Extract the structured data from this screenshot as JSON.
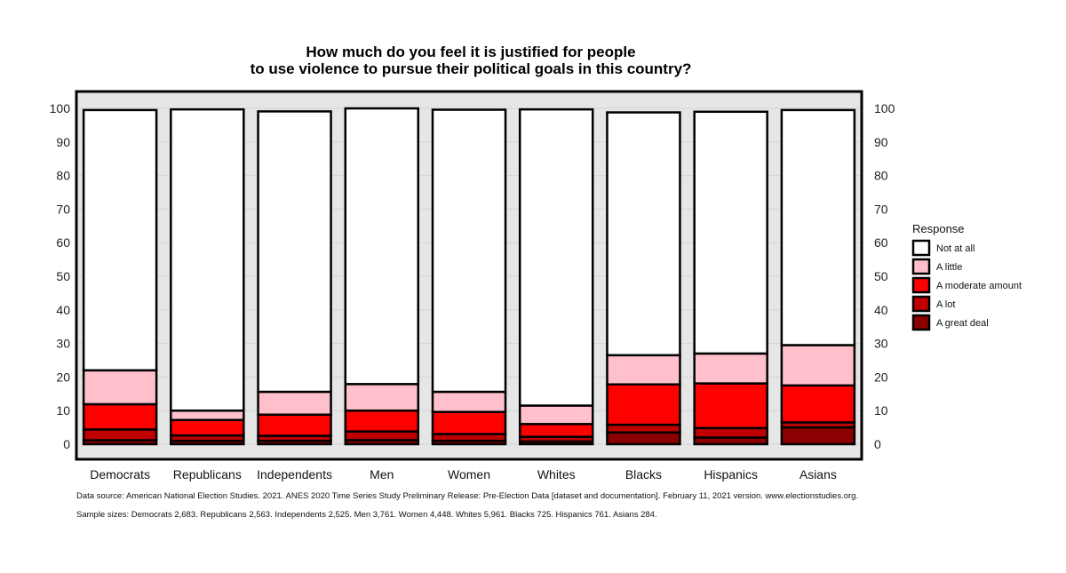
{
  "chart_data": {
    "type": "bar",
    "stacked": true,
    "title_lines": [
      "How much do you feel it is justified for people",
      "to use violence to pursue their political goals in this country?"
    ],
    "categories": [
      "Democrats",
      "Republicans",
      "Independents",
      "Men",
      "Women",
      "Whites",
      "Blacks",
      "Hispanics",
      "Asians"
    ],
    "ylim": [
      0,
      100
    ],
    "yticks": [
      0,
      10,
      20,
      30,
      40,
      50,
      60,
      70,
      80,
      90,
      100
    ],
    "ytick_labels": [
      "0",
      "10",
      "20",
      "30",
      "40",
      "50",
      "60",
      "70",
      "80",
      "90",
      "100"
    ],
    "grid": true,
    "legend_title": "Response",
    "legend_position": "right",
    "series": [
      {
        "name": "A great deal",
        "color": "#8b0000",
        "values": [
          1.2,
          1.0,
          1.0,
          1.2,
          1.0,
          0.8,
          3.5,
          2.0,
          5.0
        ]
      },
      {
        "name": "A lot",
        "color": "#c00000",
        "values": [
          3.2,
          1.6,
          1.5,
          2.6,
          2.0,
          1.4,
          2.3,
          2.8,
          1.5
        ]
      },
      {
        "name": "A moderate amount",
        "color": "#ff0000",
        "values": [
          7.5,
          4.6,
          6.3,
          6.2,
          6.6,
          3.8,
          12.0,
          13.3,
          11.0
        ]
      },
      {
        "name": "A little",
        "color": "#ffc0cb",
        "values": [
          10.1,
          2.8,
          6.8,
          7.9,
          6.0,
          5.5,
          8.7,
          8.9,
          12.0
        ]
      },
      {
        "name": "Not at all",
        "color": "#ffffff",
        "values": [
          77.5,
          89.7,
          83.5,
          82.1,
          84.0,
          88.2,
          72.3,
          72.0,
          70.0
        ]
      }
    ],
    "legend_order": [
      "Not at all",
      "A little",
      "A moderate amount",
      "A lot",
      "A great deal"
    ],
    "notes": [
      "Data source: American National Election Studies. 2021. ANES 2020 Time Series Study Preliminary Release: Pre-Election Data [dataset and documentation]. February 11, 2021 version. www.electionstudies.org.",
      "Sample sizes: Democrats 2,683. Republicans 2,563. Independents 2,525. Men 3,761. Women 4,448. Whites 5,961. Blacks 725. Hispanics 761. Asians 284."
    ]
  }
}
